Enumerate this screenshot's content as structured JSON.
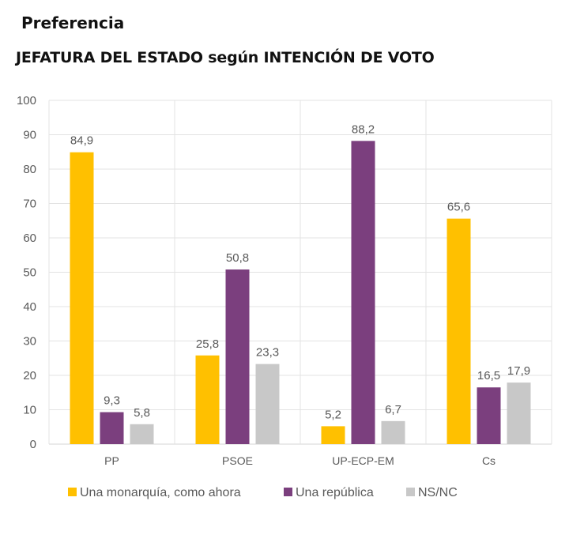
{
  "header": {
    "title": "Preferencia",
    "subtitle": "JEFATURA DEL ESTADO según INTENCIÓN DE VOTO"
  },
  "chart_data": {
    "type": "bar",
    "title": "JEFATURA DEL ESTADO según INTENCIÓN DE VOTO",
    "subtitle": "Preferencia",
    "xlabel": "",
    "ylabel": "",
    "ylim": [
      0,
      100
    ],
    "yticks": [
      0,
      10,
      20,
      30,
      40,
      50,
      60,
      70,
      80,
      90,
      100
    ],
    "grid": true,
    "legend_position": "bottom",
    "categories": [
      "PP",
      "PSOE",
      "UP-ECP-EM",
      "Cs"
    ],
    "series": [
      {
        "name": "Una monarquía, como ahora",
        "color": "#FFC000",
        "values": [
          84.9,
          25.8,
          5.2,
          65.6
        ],
        "labels": [
          "84,9",
          "25,8",
          "5,2",
          "65,6"
        ]
      },
      {
        "name": "Una república",
        "color": "#7B3F7E",
        "values": [
          9.3,
          50.8,
          88.2,
          16.5
        ],
        "labels": [
          "9,3",
          "50,8",
          "88,2",
          "16,5"
        ]
      },
      {
        "name": "NS/NC",
        "color": "#C8C8C8",
        "values": [
          5.8,
          23.3,
          6.7,
          17.9
        ],
        "labels": [
          "5,8",
          "23,3",
          "6,7",
          "17,9"
        ]
      }
    ]
  }
}
